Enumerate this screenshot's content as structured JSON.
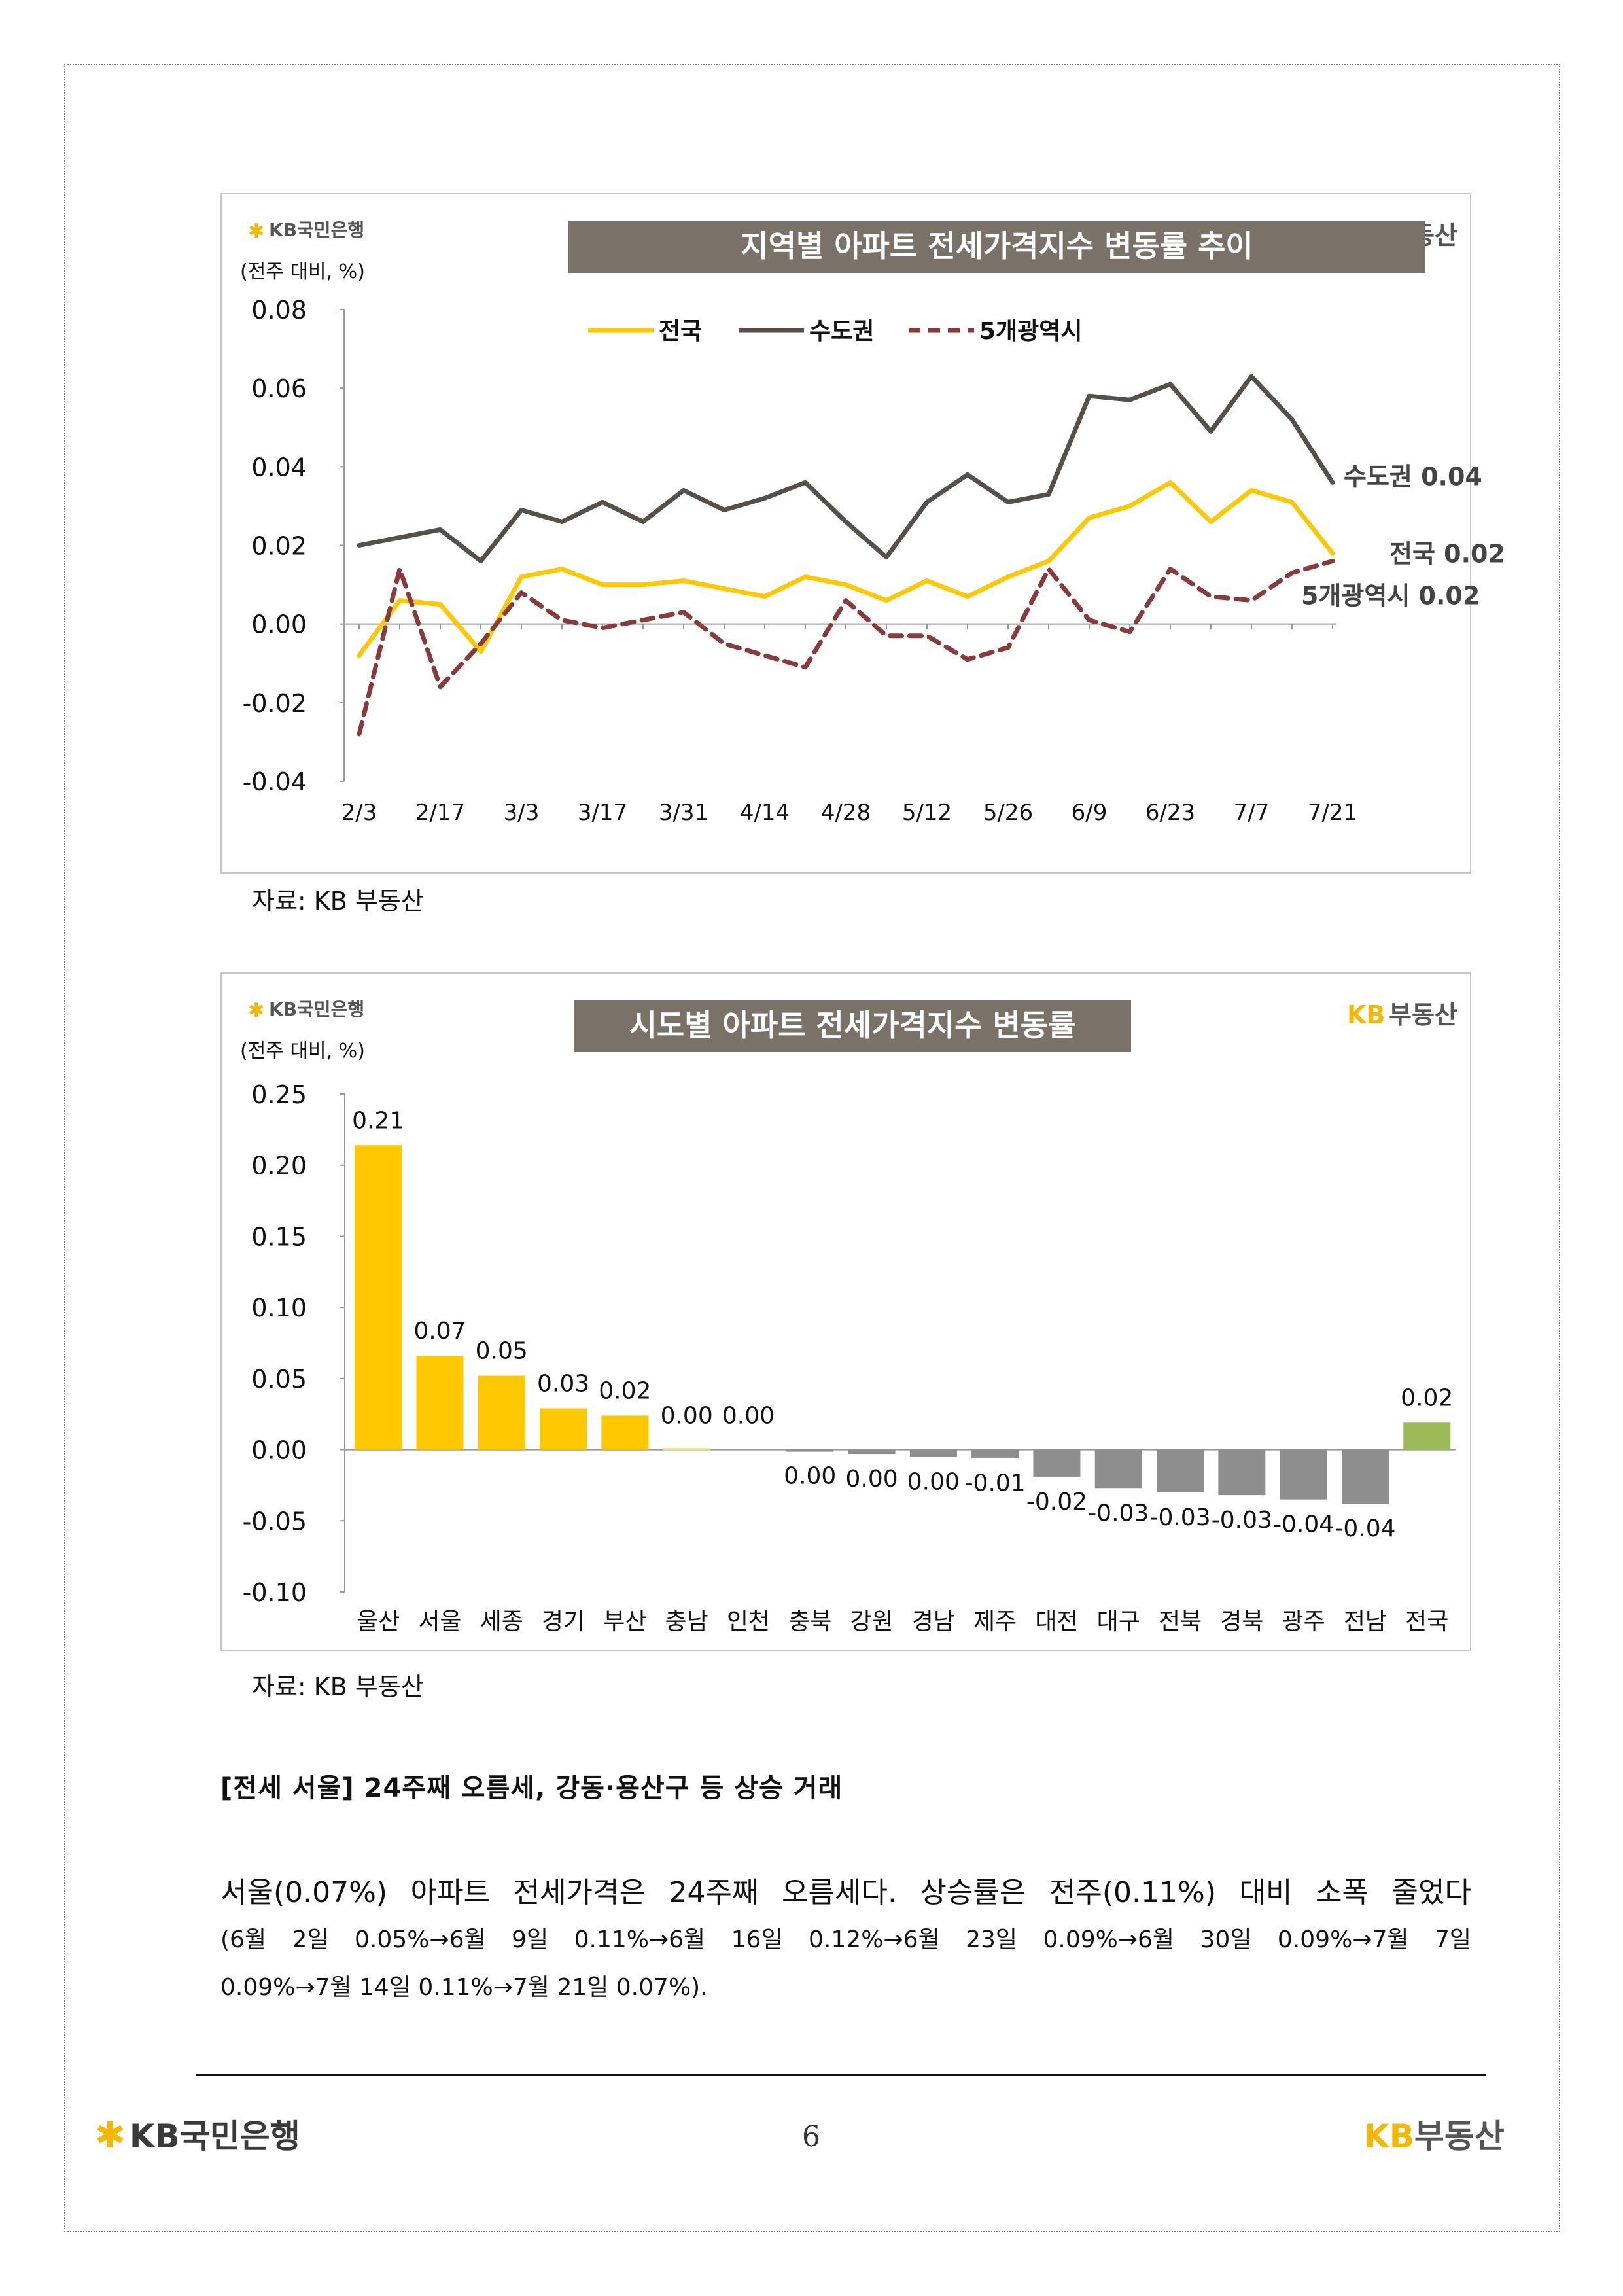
{
  "chart_data": [
    {
      "type": "line",
      "title": "지역별 아파트 전세가격지수 변동률 추이",
      "brand_left": "KB국민은행",
      "brand_right": "KB부동산",
      "ylabel": "(전주 대비, %)",
      "ylim": [
        -0.04,
        0.08
      ],
      "yticks": [
        "0.08",
        "0.06",
        "0.04",
        "0.02",
        "0.00",
        "-0.02",
        "-0.04"
      ],
      "xtick_labels": [
        "2/3",
        "2/17",
        "3/3",
        "3/17",
        "3/31",
        "4/14",
        "4/28",
        "5/12",
        "5/26",
        "6/9",
        "6/23",
        "7/7",
        "7/21"
      ],
      "series": [
        {
          "name": "전국",
          "color": "#FFC800",
          "dash": false,
          "end_label": "전국 0.02",
          "values": [
            -0.008,
            0.006,
            0.005,
            -0.007,
            0.012,
            0.014,
            0.01,
            0.01,
            0.011,
            0.009,
            0.007,
            0.012,
            0.01,
            0.006,
            0.011,
            0.007,
            0.012,
            0.016,
            0.027,
            0.03,
            0.036,
            0.026,
            0.034,
            0.031,
            0.018
          ]
        },
        {
          "name": "수도권",
          "color": "#555049",
          "dash": false,
          "end_label": "수도권 0.04",
          "values": [
            0.02,
            0.022,
            0.024,
            0.016,
            0.029,
            0.026,
            0.031,
            0.026,
            0.034,
            0.029,
            0.032,
            0.036,
            0.026,
            0.017,
            0.031,
            0.038,
            0.031,
            0.033,
            0.058,
            0.057,
            0.061,
            0.049,
            0.063,
            0.052,
            0.036
          ]
        },
        {
          "name": "5개광역시",
          "color": "#8B3A3A",
          "dash": true,
          "end_label": "5개광역시 0.02",
          "values": [
            -0.028,
            0.014,
            -0.016,
            -0.005,
            0.008,
            0.001,
            -0.001,
            0.001,
            0.003,
            -0.005,
            -0.008,
            -0.011,
            0.006,
            -0.003,
            -0.003,
            -0.009,
            -0.006,
            0.014,
            0.001,
            -0.002,
            0.014,
            0.007,
            0.006,
            0.013,
            0.016
          ]
        }
      ]
    },
    {
      "type": "bar",
      "title": "시도별 아파트 전세가격지수 변동률",
      "brand_left": "KB국민은행",
      "brand_right": "KB부동산",
      "ylabel": "(전주 대비, %)",
      "ylim": [
        -0.1,
        0.25
      ],
      "yticks": [
        "0.25",
        "0.20",
        "0.15",
        "0.10",
        "0.05",
        "0.00",
        "-0.05",
        "-0.10"
      ],
      "categories": [
        "울산",
        "서울",
        "세종",
        "경기",
        "부산",
        "충남",
        "인천",
        "충북",
        "강원",
        "경남",
        "제주",
        "대전",
        "대구",
        "전북",
        "경북",
        "광주",
        "전남",
        "전국"
      ],
      "values": [
        0.214,
        0.066,
        0.052,
        0.029,
        0.024,
        0.001,
        0.0,
        -0.001,
        -0.003,
        -0.005,
        -0.006,
        -0.019,
        -0.027,
        -0.03,
        -0.032,
        -0.035,
        -0.038,
        0.019
      ],
      "value_labels": [
        "0.21",
        "0.07",
        "0.05",
        "0.03",
        "0.02",
        "0.00",
        "0.00",
        "0.00",
        "0.00",
        "0.00",
        "-0.01",
        "-0.02",
        "-0.03",
        "-0.03",
        "-0.03",
        "-0.04",
        "-0.04",
        "0.02"
      ],
      "colors": {
        "positive": "#FFC800",
        "negative": "#8E8E8E",
        "national": "#9BBB59",
        "near_zero": "#E9D96A"
      }
    }
  ],
  "source1": "자료: KB 부동산",
  "source2": "자료: KB 부동산",
  "heading": "[전세 서울] 24주째 오름세, 강동·용산구 등 상승 거래",
  "paragraph": {
    "line1": "서울(0.07%) 아파트 전세가격은 24주째 오름세다. 상승률은 전주(0.11%) 대비 소폭 줄었다",
    "line2": "(6월 2일 0.05%→6월 9일 0.11%→6월 16일 0.12%→6월 23일 0.09%→6월 30일 0.09%→7월 7일",
    "line3": "0.09%→7월 14일 0.11%→7월 21일 0.07%)."
  },
  "footer": {
    "left_logo": "KB국민은행",
    "page_number": "6",
    "right_logo_kb": "KB",
    "right_logo_text": "부동산"
  }
}
